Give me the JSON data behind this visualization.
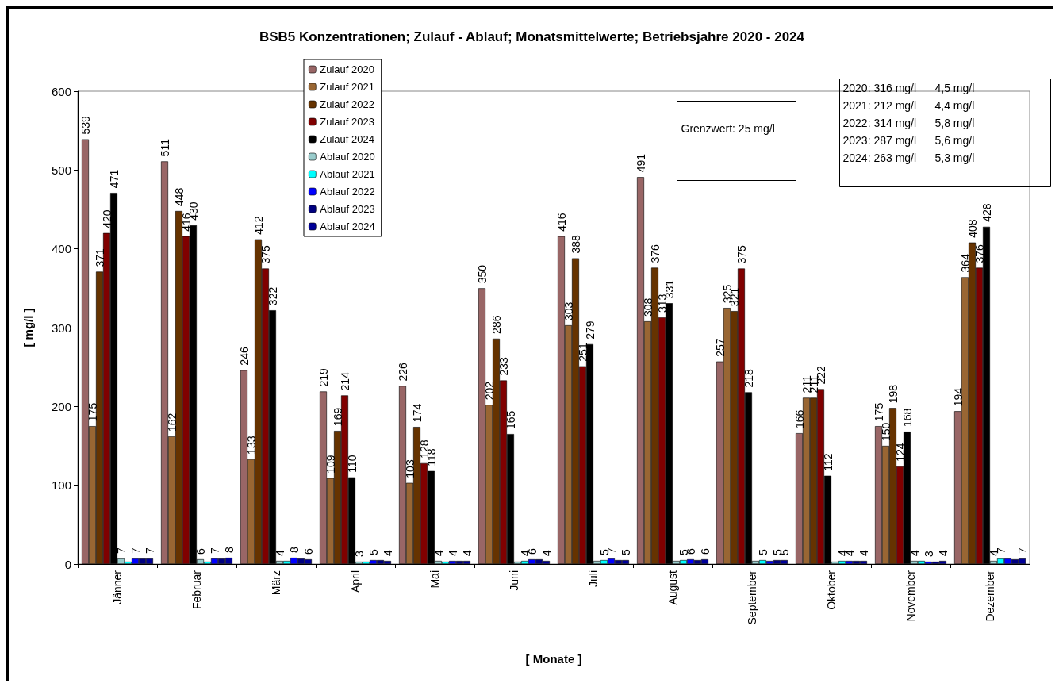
{
  "chart_data": {
    "type": "bar",
    "title": "BSB5 Konzentrationen; Zulauf - Ablauf; Monatsmittelwerte; Betriebsjahre 2020 - 2024",
    "xlabel": "[ Monate ]",
    "ylabel": "[ mg/l ]",
    "categories": [
      "Jänner",
      "Februar",
      "März",
      "April",
      "Mai",
      "Juni",
      "Juli",
      "August",
      "September",
      "Oktober",
      "November",
      "Dezember"
    ],
    "ylim": [
      0,
      600
    ],
    "yticks": [
      0,
      100,
      200,
      300,
      400,
      500,
      600
    ],
    "grid": false,
    "legend": "top left",
    "annotations": [
      "Grenzwert: 25 mg/l",
      "2020: 316 mg/l      4,5 mg/l",
      "2021: 212 mg/l      4,4 mg/l",
      "2022: 314 mg/l      5,8 mg/l",
      "2023: 287 mg/l      5,6 mg/l",
      "2024: 263 mg/l      5,3 mg/l"
    ],
    "series": [
      {
        "name": "Zulauf 2020",
        "color": "#996666",
        "values": [
          539,
          511,
          246,
          219,
          226,
          350,
          416,
          491,
          257,
          166,
          175,
          194
        ],
        "value_labels": [
          "539",
          "511",
          "246",
          "219",
          "226",
          "350",
          "416",
          "491",
          "257",
          "166",
          "175",
          "194"
        ]
      },
      {
        "name": "Zulauf 2021",
        "color": "#996633",
        "values": [
          175,
          162,
          133,
          109,
          103,
          202,
          303,
          308,
          325,
          211,
          150,
          364
        ],
        "value_labels": [
          "175",
          "162",
          "133",
          "109",
          "103",
          "202",
          "303",
          "308",
          "325",
          "211",
          "150",
          "364"
        ]
      },
      {
        "name": "Zulauf 2022",
        "color": "#663300",
        "values": [
          371,
          448,
          412,
          169,
          174,
          286,
          388,
          376,
          321,
          211,
          198,
          408
        ],
        "value_labels": [
          "371",
          "448",
          "412",
          "169",
          "174",
          "286",
          "388",
          "376",
          "321",
          "211",
          "198",
          "408"
        ]
      },
      {
        "name": "Zulauf 2023",
        "color": "#800000",
        "values": [
          420,
          416,
          375,
          214,
          128,
          233,
          251,
          313,
          375,
          222,
          124,
          376
        ],
        "value_labels": [
          "420",
          "416",
          "375",
          "214",
          "128",
          "233",
          "251",
          "313",
          "375",
          "222",
          "124",
          "376"
        ]
      },
      {
        "name": "Zulauf 2024",
        "color": "#000000",
        "values": [
          471,
          430,
          322,
          110,
          118,
          165,
          279,
          331,
          218,
          112,
          168,
          428
        ],
        "value_labels": [
          "471",
          "430",
          "322",
          "110",
          "118",
          "165",
          "279",
          "331",
          "218",
          "112",
          "168",
          "428"
        ]
      },
      {
        "name": "Ablauf 2020",
        "color": "#99cccc",
        "values": [
          7,
          6,
          4,
          3,
          4,
          3,
          4,
          4,
          4,
          3,
          4,
          4
        ],
        "value_labels": [
          "7",
          "6",
          "4",
          "3",
          "4",
          null,
          null,
          null,
          null,
          null,
          "4",
          "4"
        ]
      },
      {
        "name": "Ablauf 2021",
        "color": "#00ffff",
        "values": [
          3,
          3,
          4,
          3,
          3,
          4,
          5,
          5,
          5,
          4,
          4,
          7
        ],
        "value_labels": [
          null,
          null,
          null,
          null,
          null,
          "4",
          "5",
          "5",
          "5",
          "4",
          null,
          "7"
        ]
      },
      {
        "name": "Ablauf 2022",
        "color": "#0000ff",
        "values": [
          7,
          7,
          8,
          5,
          4,
          6,
          7,
          6,
          4,
          4,
          3,
          7
        ],
        "value_labels": [
          "7",
          "7",
          "8",
          "5",
          "4",
          "6",
          "7",
          "6",
          null,
          "4",
          "3",
          null
        ]
      },
      {
        "name": "Ablauf 2023",
        "color": "#000080",
        "values": [
          7,
          7,
          7,
          5,
          4,
          6,
          5,
          5,
          5,
          4,
          3,
          6
        ],
        "value_labels": [
          null,
          null,
          null,
          null,
          null,
          null,
          null,
          null,
          "5",
          null,
          null,
          null
        ]
      },
      {
        "name": "Ablauf 2024",
        "color": "#000099",
        "values": [
          7,
          8,
          6,
          4,
          4,
          4,
          5,
          6,
          5,
          4,
          4,
          7
        ],
        "value_labels": [
          "7",
          "8",
          "6",
          "4",
          "4",
          "4",
          "5",
          "6",
          "5",
          "4",
          "4",
          "7"
        ]
      }
    ]
  }
}
